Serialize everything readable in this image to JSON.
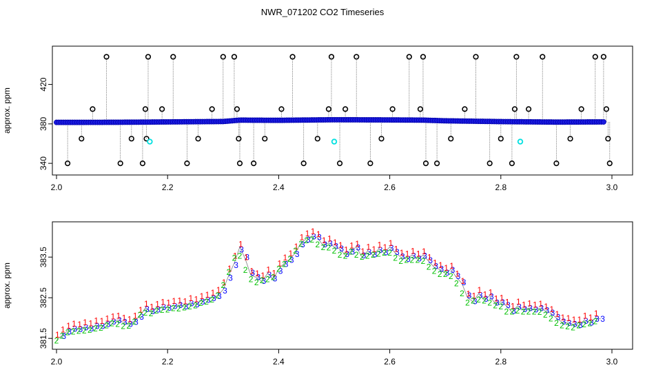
{
  "figure": {
    "title": "NWR_071202  CO2 Timeseries"
  },
  "colors": {
    "series1": "#ff0000",
    "series2": "#00c000",
    "series3": "#0000ff",
    "outlier": "#000000",
    "flagged": "#00e0e0",
    "trace": "#808080"
  },
  "chart_data": [
    {
      "type": "scatter",
      "title": "",
      "xlabel": "",
      "ylabel": "approx. ppm",
      "xlim": [
        2.0,
        3.0
      ],
      "ylim": [
        331,
        456
      ],
      "xticks": [
        "2.0",
        "2.2",
        "2.4",
        "2.6",
        "2.8",
        "3.0"
      ],
      "yticks": [
        "340",
        "380",
        "420"
      ],
      "ytick_values": [
        340,
        380,
        420
      ],
      "baseline": [
        [
          2.0,
          381.5
        ],
        [
          2.1,
          381.6
        ],
        [
          2.16,
          381.8
        ],
        [
          2.2,
          382.0
        ],
        [
          2.3,
          382.4
        ],
        [
          2.33,
          383.8
        ],
        [
          2.4,
          383.6
        ],
        [
          2.5,
          384.2
        ],
        [
          2.6,
          384.0
        ],
        [
          2.66,
          383.8
        ],
        [
          2.7,
          383.1
        ],
        [
          2.8,
          382.3
        ],
        [
          2.9,
          381.8
        ],
        [
          2.98,
          382.0
        ]
      ],
      "outliers": [
        [
          2.02,
          340
        ],
        [
          2.045,
          365
        ],
        [
          2.065,
          395
        ],
        [
          2.09,
          448
        ],
        [
          2.115,
          340
        ],
        [
          2.135,
          365
        ],
        [
          2.155,
          340
        ],
        [
          2.16,
          395
        ],
        [
          2.162,
          365
        ],
        [
          2.165,
          448
        ],
        [
          2.19,
          395
        ],
        [
          2.21,
          448
        ],
        [
          2.235,
          340
        ],
        [
          2.255,
          365
        ],
        [
          2.28,
          395
        ],
        [
          2.3,
          448
        ],
        [
          2.32,
          448
        ],
        [
          2.325,
          395
        ],
        [
          2.328,
          365
        ],
        [
          2.33,
          340
        ],
        [
          2.355,
          340
        ],
        [
          2.375,
          365
        ],
        [
          2.405,
          395
        ],
        [
          2.425,
          448
        ],
        [
          2.445,
          340
        ],
        [
          2.47,
          365
        ],
        [
          2.49,
          395
        ],
        [
          2.495,
          448
        ],
        [
          2.51,
          340
        ],
        [
          2.52,
          395
        ],
        [
          2.54,
          448
        ],
        [
          2.565,
          340
        ],
        [
          2.585,
          365
        ],
        [
          2.605,
          395
        ],
        [
          2.635,
          448
        ],
        [
          2.655,
          395
        ],
        [
          2.66,
          448
        ],
        [
          2.665,
          340
        ],
        [
          2.685,
          340
        ],
        [
          2.71,
          365
        ],
        [
          2.735,
          395
        ],
        [
          2.755,
          448
        ],
        [
          2.78,
          340
        ],
        [
          2.8,
          365
        ],
        [
          2.82,
          340
        ],
        [
          2.825,
          395
        ],
        [
          2.828,
          448
        ],
        [
          2.85,
          395
        ],
        [
          2.875,
          448
        ],
        [
          2.9,
          340
        ],
        [
          2.925,
          365
        ],
        [
          2.945,
          395
        ],
        [
          2.97,
          448
        ],
        [
          2.985,
          448
        ],
        [
          2.99,
          395
        ],
        [
          2.993,
          365
        ],
        [
          2.996,
          340
        ]
      ],
      "flagged": [
        [
          2.168,
          362
        ],
        [
          2.5,
          362
        ],
        [
          2.835,
          362
        ]
      ]
    },
    {
      "type": "scatter",
      "title": "",
      "xlabel": "",
      "ylabel": "approx. ppm",
      "xlim": [
        2.0,
        3.0
      ],
      "ylim": [
        381.3,
        384.3
      ],
      "xticks": [
        "2.0",
        "2.2",
        "2.4",
        "2.6",
        "2.8",
        "3.0"
      ],
      "yticks": [
        "381.5",
        "382.5",
        "383.5"
      ],
      "ytick_values": [
        381.5,
        382.5,
        383.5
      ],
      "series_symbols": [
        "1",
        "2",
        "3"
      ],
      "trace": [
        [
          2.0,
          381.45
        ],
        [
          2.01,
          381.58
        ],
        [
          2.02,
          381.68
        ],
        [
          2.03,
          381.75
        ],
        [
          2.04,
          381.72
        ],
        [
          2.05,
          381.78
        ],
        [
          2.06,
          381.74
        ],
        [
          2.07,
          381.82
        ],
        [
          2.08,
          381.8
        ],
        [
          2.09,
          381.86
        ],
        [
          2.1,
          381.92
        ],
        [
          2.11,
          381.95
        ],
        [
          2.12,
          381.9
        ],
        [
          2.13,
          381.84
        ],
        [
          2.14,
          381.92
        ],
        [
          2.15,
          382.05
        ],
        [
          2.16,
          382.25
        ],
        [
          2.17,
          382.15
        ],
        [
          2.18,
          382.22
        ],
        [
          2.19,
          382.28
        ],
        [
          2.2,
          382.25
        ],
        [
          2.21,
          382.3
        ],
        [
          2.22,
          382.32
        ],
        [
          2.23,
          382.28
        ],
        [
          2.24,
          382.38
        ],
        [
          2.25,
          382.33
        ],
        [
          2.26,
          382.42
        ],
        [
          2.27,
          382.45
        ],
        [
          2.28,
          382.5
        ],
        [
          2.29,
          382.55
        ],
        [
          2.3,
          382.7
        ],
        [
          2.31,
          383.05
        ],
        [
          2.32,
          383.35
        ],
        [
          2.33,
          383.75
        ],
        [
          2.34,
          383.45
        ],
        [
          2.35,
          383.05
        ],
        [
          2.36,
          383.0
        ],
        [
          2.37,
          382.9
        ],
        [
          2.38,
          383.1
        ],
        [
          2.39,
          382.95
        ],
        [
          2.4,
          383.2
        ],
        [
          2.41,
          383.35
        ],
        [
          2.42,
          383.45
        ],
        [
          2.43,
          383.6
        ],
        [
          2.44,
          383.85
        ],
        [
          2.45,
          383.95
        ],
        [
          2.46,
          384.02
        ],
        [
          2.47,
          383.98
        ],
        [
          2.48,
          383.78
        ],
        [
          2.49,
          383.85
        ],
        [
          2.5,
          383.75
        ],
        [
          2.51,
          383.7
        ],
        [
          2.52,
          383.55
        ],
        [
          2.53,
          383.65
        ],
        [
          2.54,
          383.75
        ],
        [
          2.55,
          383.5
        ],
        [
          2.56,
          383.65
        ],
        [
          2.57,
          383.55
        ],
        [
          2.58,
          383.7
        ],
        [
          2.59,
          383.6
        ],
        [
          2.6,
          383.75
        ],
        [
          2.61,
          383.6
        ],
        [
          2.62,
          383.5
        ],
        [
          2.63,
          383.45
        ],
        [
          2.64,
          383.55
        ],
        [
          2.65,
          383.45
        ],
        [
          2.66,
          383.55
        ],
        [
          2.67,
          383.4
        ],
        [
          2.68,
          383.25
        ],
        [
          2.69,
          383.2
        ],
        [
          2.7,
          383.1
        ],
        [
          2.71,
          383.2
        ],
        [
          2.72,
          383.0
        ],
        [
          2.73,
          382.85
        ],
        [
          2.74,
          382.5
        ],
        [
          2.75,
          382.4
        ],
        [
          2.76,
          382.6
        ],
        [
          2.77,
          382.45
        ],
        [
          2.78,
          382.55
        ],
        [
          2.79,
          382.35
        ],
        [
          2.8,
          382.4
        ],
        [
          2.81,
          382.3
        ],
        [
          2.82,
          382.15
        ],
        [
          2.83,
          382.3
        ],
        [
          2.84,
          382.2
        ],
        [
          2.85,
          382.25
        ],
        [
          2.86,
          382.2
        ],
        [
          2.87,
          382.25
        ],
        [
          2.88,
          382.18
        ],
        [
          2.89,
          382.12
        ],
        [
          2.9,
          382.0
        ],
        [
          2.91,
          381.9
        ],
        [
          2.92,
          381.88
        ],
        [
          2.93,
          381.85
        ],
        [
          2.94,
          381.82
        ],
        [
          2.95,
          381.95
        ],
        [
          2.96,
          381.88
        ],
        [
          2.97,
          382.0
        ],
        [
          2.98,
          381.98
        ]
      ]
    }
  ]
}
